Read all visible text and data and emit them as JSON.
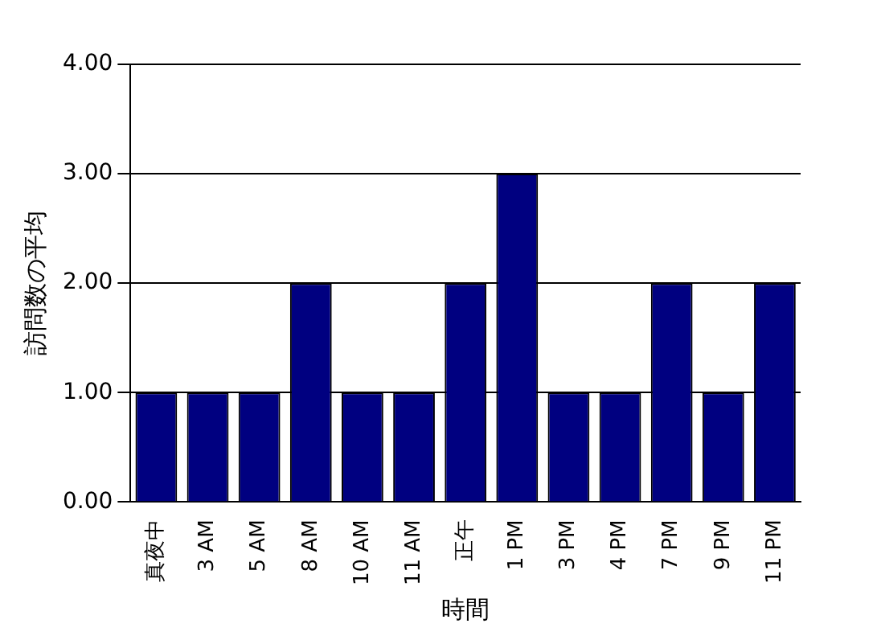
{
  "chart_data": {
    "type": "bar",
    "xlabel": "時間",
    "ylabel": "訪問数の平均",
    "categories": [
      "真夜中",
      "3 AM",
      "5 AM",
      "8 AM",
      "10 AM",
      "11 AM",
      "正午",
      "1 PM",
      "3 PM",
      "4 PM",
      "7 PM",
      "9 PM",
      "11 PM"
    ],
    "values": [
      1,
      1,
      1,
      2,
      1,
      1,
      2,
      3,
      1,
      1,
      2,
      1,
      2
    ],
    "color": "#000080",
    "ylim": [
      0,
      4
    ],
    "yticks": [
      {
        "value": 0,
        "label": "0.00"
      },
      {
        "value": 1,
        "label": "1.00"
      },
      {
        "value": 2,
        "label": "2.00"
      },
      {
        "value": 3,
        "label": "3.00"
      },
      {
        "value": 4,
        "label": "4.00"
      }
    ],
    "grid": "y",
    "legend": false
  }
}
